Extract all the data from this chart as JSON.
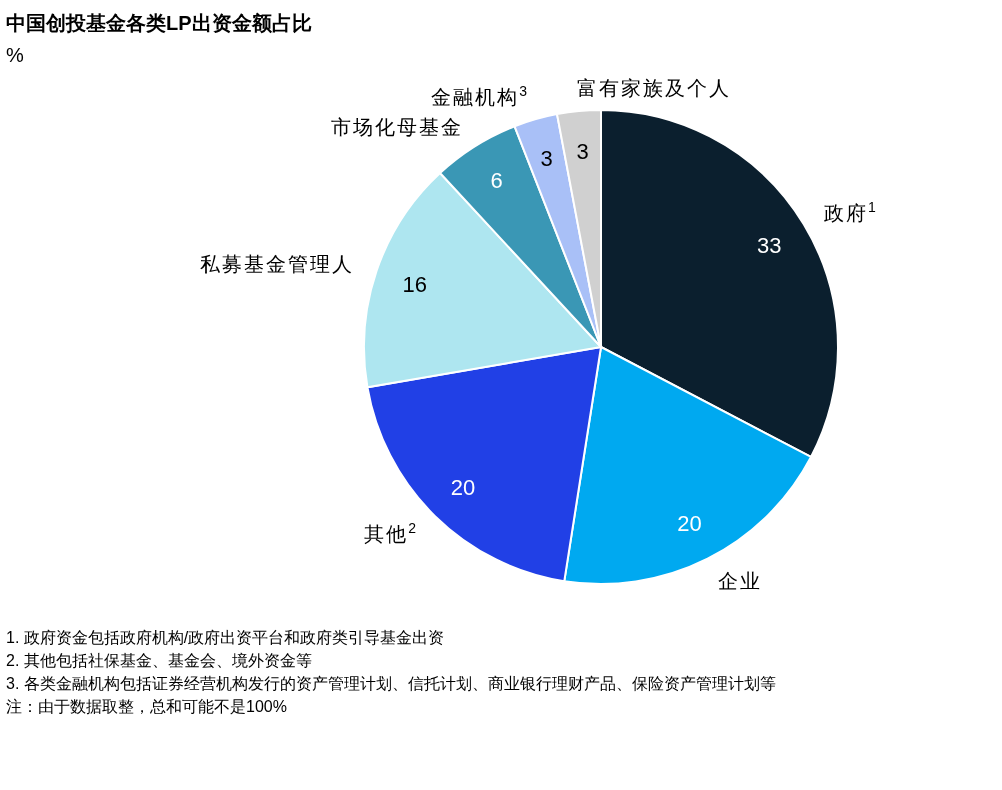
{
  "chart_data": {
    "type": "pie",
    "title": "中国创投基金各类LP出资金额占比",
    "subtitle": "%",
    "categories": [
      "政府$^{1}$",
      "企业",
      "其他$^{2}$",
      "私募基金管理人",
      "市场化母基金",
      "金融机构$^{3}$",
      "富有家族及个人"
    ],
    "values": [
      33,
      20,
      20,
      16,
      6,
      3,
      3
    ],
    "colors": [
      "#0b1f2e",
      "#00a9f0",
      "#2140e6",
      "#aee6f0",
      "#3a97b5",
      "#a9c0f7",
      "#d0d0d0"
    ],
    "data_labels": true,
    "annotations": [
      "1.  政府资金包括政府机构/政府出资平台和政府类引导基金出资",
      "2.  其他包括社保基金、基金会、境外资金等",
      "3.  各类金融机构包括证券经营机构发行的资产管理计划、信托计划、商业银行理财产品、保险资产管理计划等",
      "注：由于数据取整，总和可能不是100%"
    ]
  }
}
